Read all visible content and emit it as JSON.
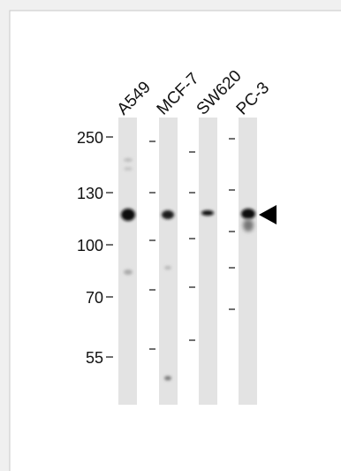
{
  "lanes": [
    "A549",
    "MCF-7",
    "SW620",
    "PC-3"
  ],
  "markers": [
    250,
    130,
    100,
    70,
    55
  ]
}
